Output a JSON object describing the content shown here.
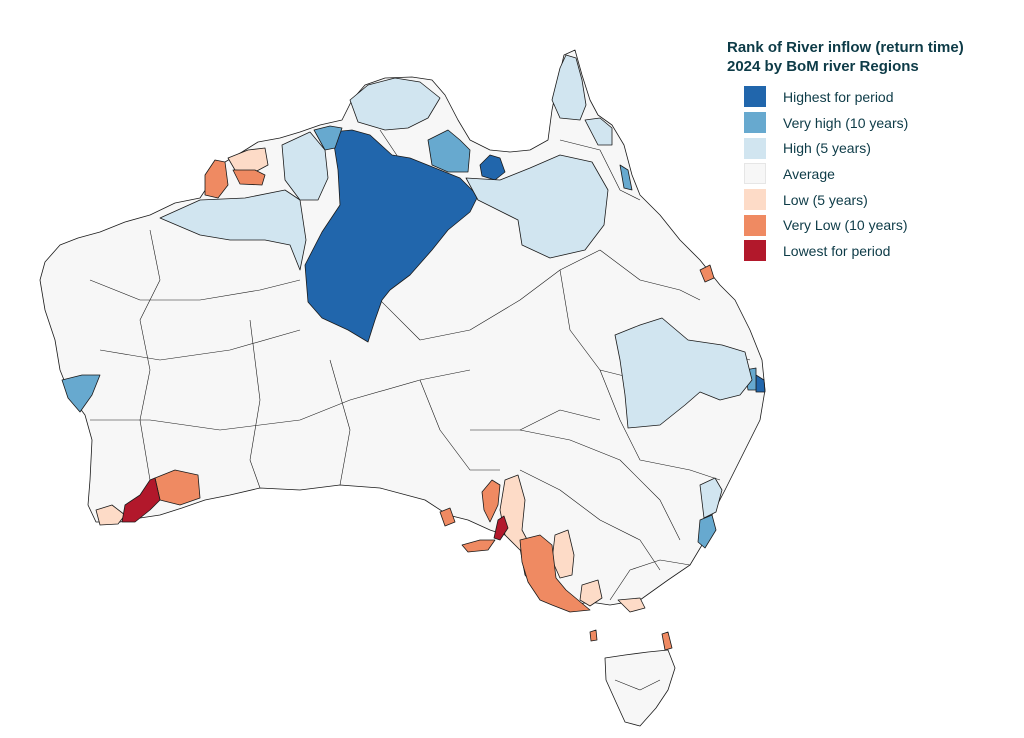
{
  "legend": {
    "title_line1": "Rank of River inflow (return time)",
    "title_line2": "2024 by BoM river Regions",
    "items": [
      {
        "label": "Highest for period",
        "color": "#2166ac"
      },
      {
        "label": "Very high (10 years)",
        "color": "#67a9cf"
      },
      {
        "label": "High (5 years)",
        "color": "#d1e5f0"
      },
      {
        "label": "Average",
        "color": "#f7f7f7"
      },
      {
        "label": "Low (5 years)",
        "color": "#fddbc7"
      },
      {
        "label": "Very Low (10 years)",
        "color": "#ef8a62"
      },
      {
        "label": "Lowest for period",
        "color": "#b2182b"
      }
    ]
  }
}
